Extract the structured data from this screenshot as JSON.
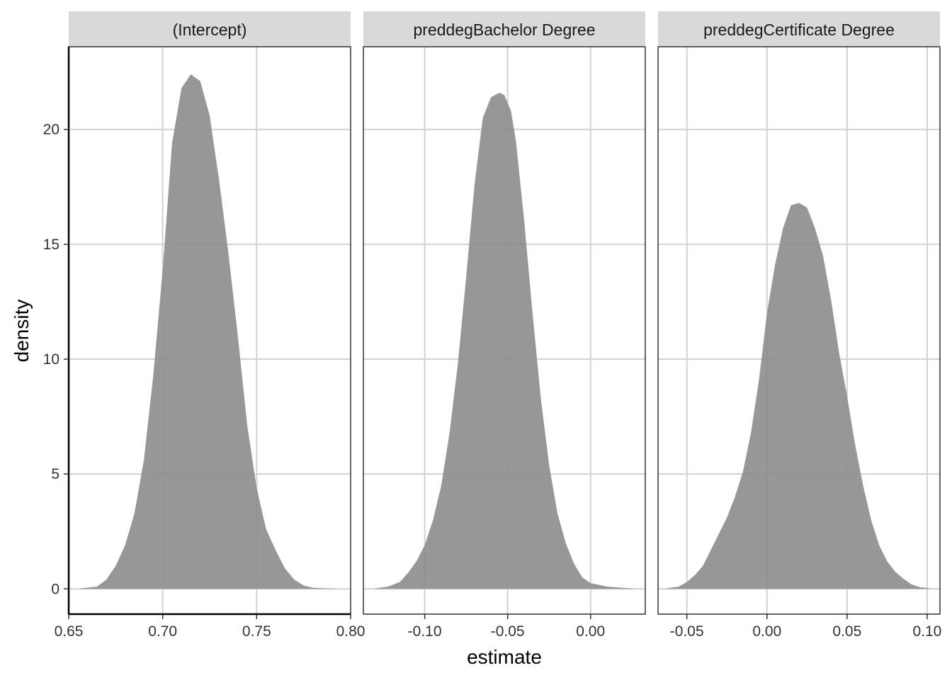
{
  "figure": {
    "xlabel": "estimate",
    "ylabel": "density"
  },
  "colors": {
    "fill": "#8c8c8c",
    "strip": "#d9d9d9",
    "grid": "#d2d2d2",
    "axis": "#000000",
    "text": "#333333"
  },
  "chart_data": [
    {
      "type": "area",
      "facet": "(Intercept)",
      "xlim": [
        0.65,
        0.8
      ],
      "ylim": [
        -1.1,
        23.6
      ],
      "xticks": [
        0.65,
        0.7,
        0.75,
        0.8
      ],
      "xtick_labels": [
        "0.65",
        "0.70",
        "0.75",
        "0.80"
      ],
      "yticks": [
        0,
        5,
        10,
        15,
        20
      ],
      "ytick_labels": [
        "0",
        "5",
        "10",
        "15",
        "20"
      ],
      "grid": true,
      "x": [
        0.656,
        0.665,
        0.67,
        0.675,
        0.68,
        0.685,
        0.69,
        0.695,
        0.7,
        0.705,
        0.71,
        0.715,
        0.72,
        0.725,
        0.73,
        0.735,
        0.74,
        0.745,
        0.75,
        0.755,
        0.76,
        0.765,
        0.77,
        0.775,
        0.78,
        0.785,
        0.79,
        0.793
      ],
      "y": [
        0.02,
        0.1,
        0.4,
        1.0,
        1.9,
        3.3,
        5.6,
        9.3,
        13.9,
        19.4,
        21.8,
        22.4,
        22.1,
        20.6,
        17.8,
        14.6,
        11.0,
        7.1,
        4.4,
        2.6,
        1.7,
        0.9,
        0.4,
        0.15,
        0.05,
        0.03,
        0.02,
        0.01
      ]
    },
    {
      "type": "area",
      "facet": "preddegBachelor Degree",
      "xlim": [
        -0.137,
        0.033
      ],
      "ylim": [
        -1.1,
        23.6
      ],
      "xticks": [
        -0.1,
        -0.05,
        0.0
      ],
      "xtick_labels": [
        "-0.10",
        "-0.05",
        "0.00"
      ],
      "yticks": [
        0,
        5,
        10,
        15,
        20
      ],
      "ytick_labels": [
        "0",
        "5",
        "10",
        "15",
        "20"
      ],
      "grid": true,
      "x": [
        -0.13,
        -0.122,
        -0.115,
        -0.11,
        -0.105,
        -0.1,
        -0.095,
        -0.09,
        -0.085,
        -0.08,
        -0.075,
        -0.07,
        -0.065,
        -0.06,
        -0.055,
        -0.052,
        -0.048,
        -0.045,
        -0.04,
        -0.035,
        -0.03,
        -0.025,
        -0.02,
        -0.015,
        -0.01,
        -0.005,
        0.0,
        0.01,
        0.02,
        0.026
      ],
      "y": [
        0.02,
        0.1,
        0.3,
        0.7,
        1.2,
        1.9,
        3.0,
        4.5,
        6.8,
        9.8,
        13.6,
        17.6,
        20.5,
        21.4,
        21.6,
        21.5,
        20.8,
        19.5,
        16.0,
        12.0,
        8.3,
        5.4,
        3.3,
        2.0,
        1.1,
        0.5,
        0.25,
        0.1,
        0.04,
        0.01
      ]
    },
    {
      "type": "area",
      "facet": "preddegCertificate Degree",
      "xlim": [
        -0.068,
        0.108
      ],
      "ylim": [
        -1.1,
        23.6
      ],
      "xticks": [
        -0.05,
        0.0,
        0.05,
        0.1
      ],
      "xtick_labels": [
        "-0.05",
        "0.00",
        "0.05",
        "0.10"
      ],
      "yticks": [
        0,
        5,
        10,
        15,
        20
      ],
      "ytick_labels": [
        "0",
        "5",
        "10",
        "15",
        "20"
      ],
      "grid": true,
      "x": [
        -0.063,
        -0.055,
        -0.05,
        -0.045,
        -0.04,
        -0.035,
        -0.03,
        -0.025,
        -0.02,
        -0.015,
        -0.01,
        -0.005,
        0.0,
        0.005,
        0.01,
        0.015,
        0.02,
        0.025,
        0.03,
        0.035,
        0.04,
        0.045,
        0.05,
        0.055,
        0.06,
        0.065,
        0.07,
        0.075,
        0.08,
        0.085,
        0.09,
        0.095,
        0.103
      ],
      "y": [
        0.02,
        0.1,
        0.3,
        0.6,
        1.0,
        1.7,
        2.4,
        3.1,
        4.0,
        5.1,
        6.8,
        9.1,
        12.0,
        14.1,
        15.7,
        16.7,
        16.8,
        16.6,
        15.7,
        14.5,
        12.6,
        10.3,
        8.4,
        6.3,
        4.5,
        3.0,
        1.9,
        1.2,
        0.75,
        0.45,
        0.2,
        0.08,
        0.01
      ]
    }
  ]
}
